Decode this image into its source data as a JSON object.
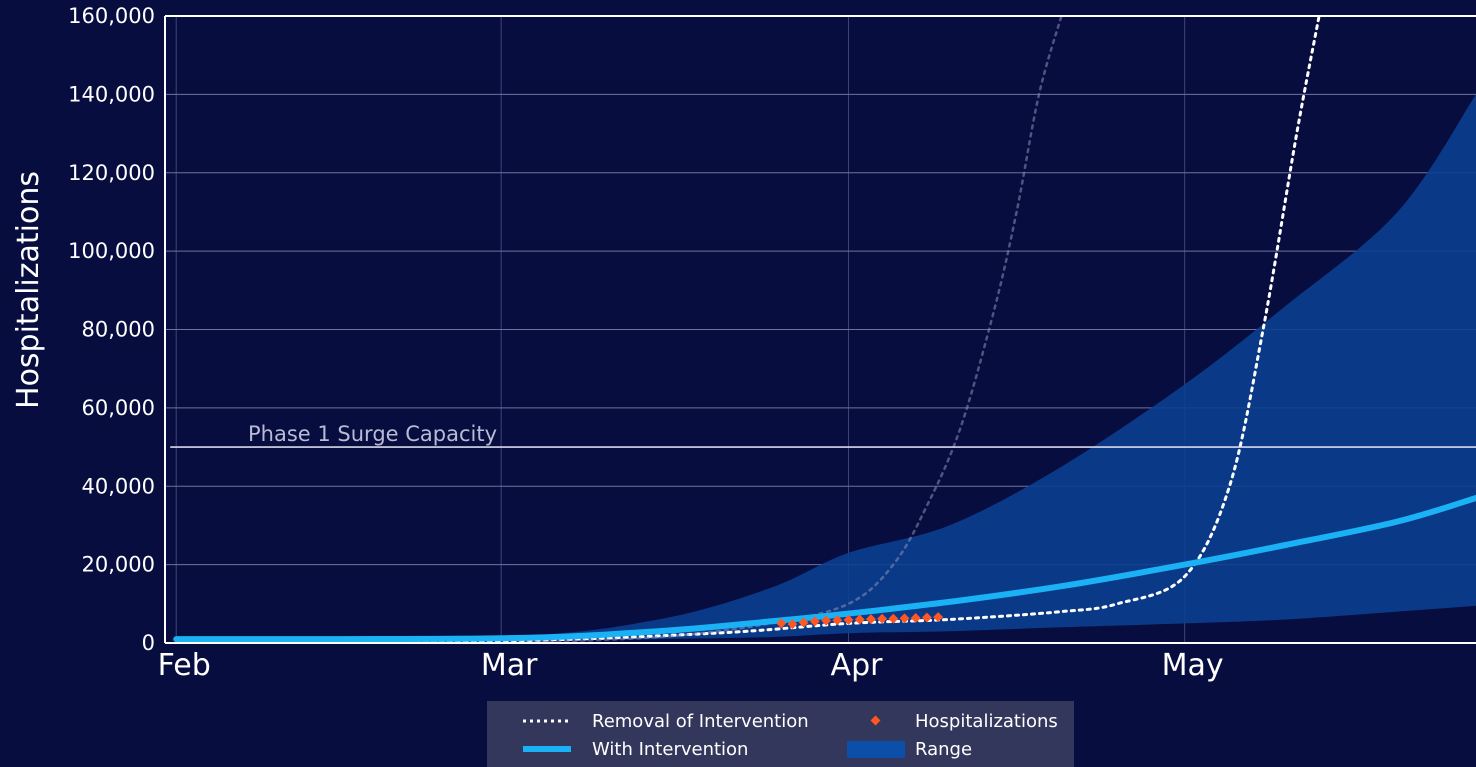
{
  "chart_data": {
    "type": "line",
    "title": "",
    "xlabel": "",
    "ylabel": "Hospitalizations",
    "xlim": [
      "2020-01-31",
      "2020-05-27"
    ],
    "ylim": [
      0,
      160000
    ],
    "grid": true,
    "x_tick_labels": [
      {
        "date": "2020-02-01",
        "label": "Feb"
      },
      {
        "date": "2020-03-01",
        "label": "Mar"
      },
      {
        "date": "2020-04-01",
        "label": "Apr"
      },
      {
        "date": "2020-05-01",
        "label": "May"
      }
    ],
    "y_ticks": [
      0,
      20000,
      40000,
      60000,
      80000,
      100000,
      120000,
      140000,
      160000
    ],
    "y_tick_labels": [
      "0",
      "20,000",
      "40,000",
      "60,000",
      "80,000",
      "100,000",
      "120,000",
      "140,000",
      "160,000"
    ],
    "reference_line": {
      "y": 50000,
      "label": "Phase 1 Surge Capacity"
    },
    "series": [
      {
        "name": "Range",
        "kind": "band",
        "color": "#0b3f8f",
        "x": [
          "2020-02-01",
          "2020-03-01",
          "2020-03-15",
          "2020-03-25",
          "2020-04-01",
          "2020-04-10",
          "2020-04-20",
          "2020-05-01",
          "2020-05-10",
          "2020-05-20",
          "2020-05-27"
        ],
        "lower": [
          0,
          500,
          1000,
          1500,
          2500,
          3000,
          4000,
          5000,
          6000,
          8000,
          9500
        ],
        "upper": [
          300,
          1500,
          6000,
          14000,
          23000,
          30000,
          45000,
          66000,
          86000,
          110000,
          140000
        ]
      },
      {
        "name": "Removal of Intervention",
        "kind": "dotted-line",
        "color": "#ffffff",
        "x": [
          "2020-02-01",
          "2020-03-01",
          "2020-03-20",
          "2020-04-01",
          "2020-04-10",
          "2020-04-20",
          "2020-04-25",
          "2020-05-01",
          "2020-05-05",
          "2020-05-08",
          "2020-05-11",
          "2020-05-13"
        ],
        "values": [
          0,
          500,
          2500,
          5000,
          6000,
          8000,
          10000,
          17000,
          40000,
          80000,
          130000,
          160000
        ]
      },
      {
        "name": "",
        "kind": "faint-dotted-line",
        "color": "#8a8fb8",
        "x": [
          "2020-03-01",
          "2020-03-15",
          "2020-03-25",
          "2020-04-01",
          "2020-04-05",
          "2020-04-08",
          "2020-04-11",
          "2020-04-14",
          "2020-04-16",
          "2020-04-18",
          "2020-04-20"
        ],
        "values": [
          0,
          1500,
          5000,
          10000,
          20000,
          35000,
          55000,
          85000,
          110000,
          140000,
          160000
        ]
      },
      {
        "name": "With Intervention",
        "kind": "line",
        "color": "#1ab2f5",
        "x": [
          "2020-02-01",
          "2020-03-01",
          "2020-03-15",
          "2020-03-25",
          "2020-04-01",
          "2020-04-10",
          "2020-04-20",
          "2020-05-01",
          "2020-05-10",
          "2020-05-20",
          "2020-05-27"
        ],
        "values": [
          1000,
          1200,
          3000,
          5500,
          7500,
          10500,
          14500,
          20000,
          25000,
          31000,
          37000
        ]
      },
      {
        "name": "Hospitalizations",
        "kind": "scatter",
        "color": "#ff5722",
        "x": [
          "2020-03-26",
          "2020-03-27",
          "2020-03-28",
          "2020-03-29",
          "2020-03-30",
          "2020-03-31",
          "2020-04-01",
          "2020-04-02",
          "2020-04-03",
          "2020-04-04",
          "2020-04-05",
          "2020-04-06",
          "2020-04-07",
          "2020-04-08",
          "2020-04-09"
        ],
        "values": [
          5000,
          4800,
          5200,
          5500,
          5700,
          5800,
          5900,
          6000,
          6100,
          6200,
          6200,
          6300,
          6400,
          6500,
          6600
        ]
      }
    ],
    "legend": {
      "position": "bottom-center",
      "items": [
        {
          "label": "Removal of Intervention",
          "symbol": "dotted-line"
        },
        {
          "label": "Hospitalizations",
          "symbol": "diamond"
        },
        {
          "label": "With Intervention",
          "symbol": "line"
        },
        {
          "label": "Range",
          "symbol": "box"
        }
      ]
    }
  }
}
